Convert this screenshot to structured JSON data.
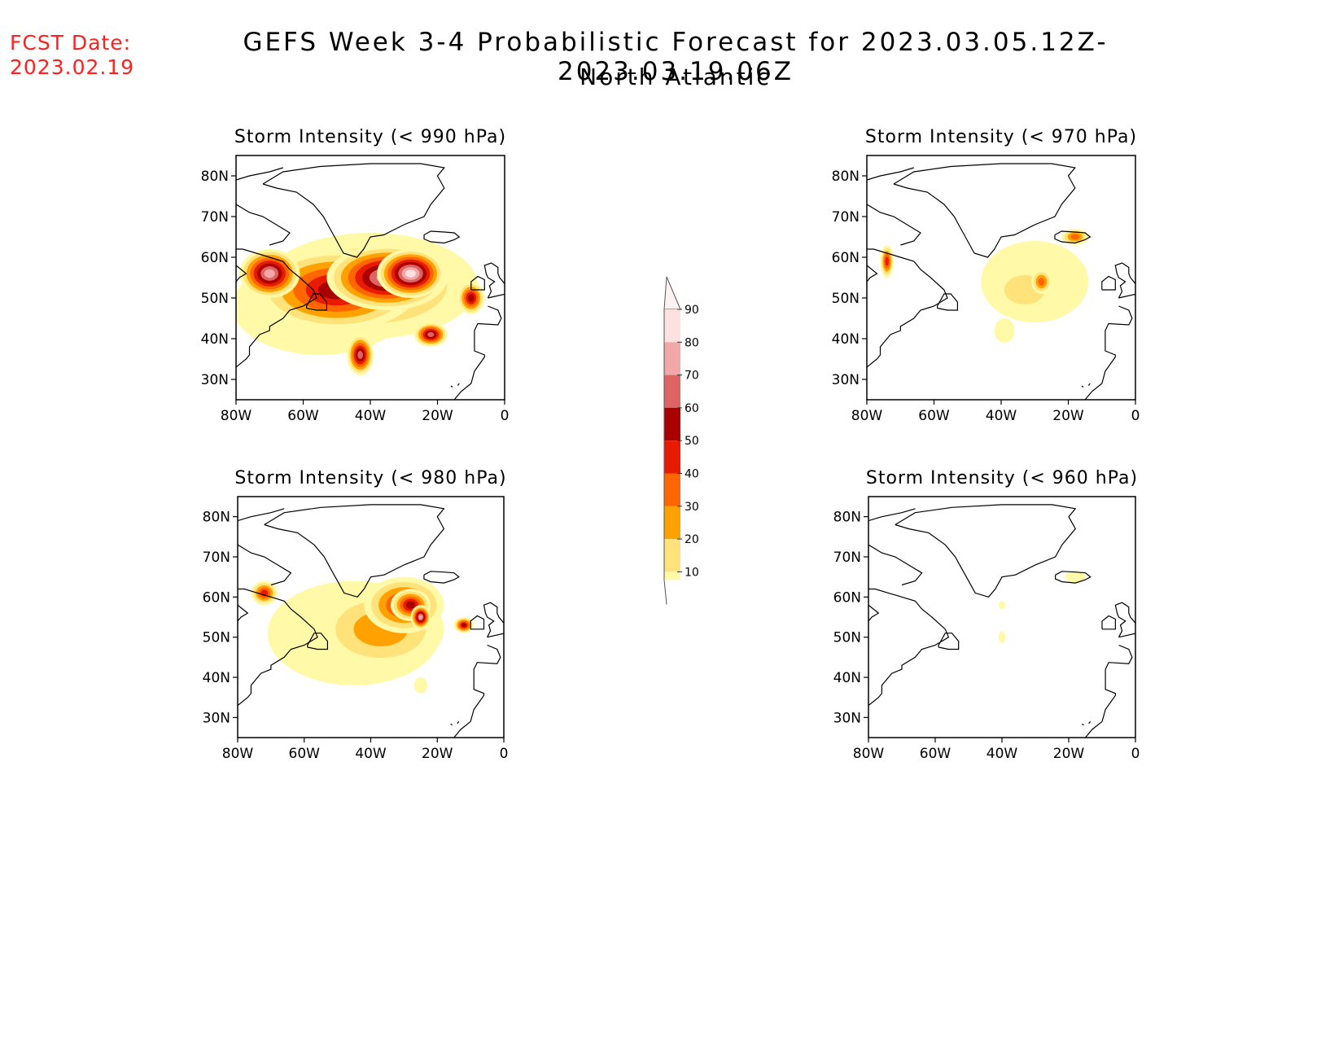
{
  "header": {
    "fcst_label": "FCST Date:",
    "fcst_date": "2023.02.19",
    "title": "GEFS Week 3-4 Probabilistic Forecast for 2023.03.05.12Z-2023.03.19.06Z",
    "subtitle": "North Atlantic"
  },
  "axes": {
    "lat_labels": [
      "80N",
      "70N",
      "60N",
      "50N",
      "40N",
      "30N"
    ],
    "lon_labels": [
      "80W",
      "60W",
      "40W",
      "20W",
      "0"
    ]
  },
  "panels": [
    {
      "title": "Storm Intensity (< 990 hPa)",
      "threshold_hpa": 990,
      "coverage": "extensive",
      "blobs": [
        {
          "lon": -55,
          "lat": 48,
          "rx": 26,
          "ry": 12,
          "level": 0
        },
        {
          "lon": -40,
          "lat": 53,
          "rx": 32,
          "ry": 13,
          "level": 2
        },
        {
          "lon": -50,
          "lat": 52,
          "rx": 24,
          "ry": 10,
          "level": 5
        },
        {
          "lon": -35,
          "lat": 55,
          "rx": 18,
          "ry": 8,
          "level": 7
        },
        {
          "lon": -70,
          "lat": 56,
          "rx": 9,
          "ry": 6,
          "level": 7
        },
        {
          "lon": -28,
          "lat": 56,
          "rx": 10,
          "ry": 6,
          "level": 8
        },
        {
          "lon": -43,
          "lat": 36,
          "rx": 4,
          "ry": 5,
          "level": 6
        },
        {
          "lon": -22,
          "lat": 41,
          "rx": 5,
          "ry": 3,
          "level": 6
        },
        {
          "lon": -10,
          "lat": 50,
          "rx": 4,
          "ry": 4,
          "level": 5
        }
      ]
    },
    {
      "title": "Storm Intensity (< 970 hPa)",
      "threshold_hpa": 970,
      "coverage": "moderate",
      "blobs": [
        {
          "lon": -30,
          "lat": 54,
          "rx": 16,
          "ry": 10,
          "level": 0
        },
        {
          "lon": -33,
          "lat": 52,
          "rx": 10,
          "ry": 6,
          "level": 1
        },
        {
          "lon": -74,
          "lat": 59,
          "rx": 2,
          "ry": 4,
          "level": 4
        },
        {
          "lon": -28,
          "lat": 54,
          "rx": 3,
          "ry": 3,
          "level": 3
        },
        {
          "lon": -18,
          "lat": 65,
          "rx": 4,
          "ry": 2,
          "level": 3
        },
        {
          "lon": -39,
          "lat": 42,
          "rx": 3,
          "ry": 3,
          "level": 0
        }
      ]
    },
    {
      "title": "Storm Intensity (< 980 hPa)",
      "threshold_hpa": 980,
      "coverage": "substantial",
      "blobs": [
        {
          "lon": -45,
          "lat": 51,
          "rx": 26,
          "ry": 13,
          "level": 0
        },
        {
          "lon": -37,
          "lat": 52,
          "rx": 19,
          "ry": 10,
          "level": 2
        },
        {
          "lon": -30,
          "lat": 58,
          "rx": 12,
          "ry": 7,
          "level": 4
        },
        {
          "lon": -28,
          "lat": 58,
          "rx": 6,
          "ry": 4,
          "level": 5
        },
        {
          "lon": -72,
          "lat": 61,
          "rx": 4,
          "ry": 3,
          "level": 4
        },
        {
          "lon": -25,
          "lat": 55,
          "rx": 3,
          "ry": 3,
          "level": 7
        },
        {
          "lon": -12,
          "lat": 53,
          "rx": 3,
          "ry": 2,
          "level": 5
        },
        {
          "lon": -25,
          "lat": 38,
          "rx": 2,
          "ry": 2,
          "level": 0
        }
      ]
    },
    {
      "title": "Storm Intensity (< 960 hPa)",
      "threshold_hpa": 960,
      "coverage": "minimal",
      "blobs": [
        {
          "lon": -18,
          "lat": 65,
          "rx": 3,
          "ry": 1.5,
          "level": 0
        },
        {
          "lon": -40,
          "lat": 50,
          "rx": 1,
          "ry": 1.5,
          "level": 0
        },
        {
          "lon": -40,
          "lat": 58,
          "rx": 1,
          "ry": 1,
          "level": 0
        }
      ]
    }
  ],
  "colorbar": {
    "labels": [
      "10",
      "20",
      "30",
      "40",
      "50",
      "60",
      "70",
      "80",
      "90"
    ],
    "colors": [
      "#fff9a8",
      "#ffe27a",
      "#ffa200",
      "#ff6600",
      "#e81a00",
      "#aa0000",
      "#de6464",
      "#f2a8a8",
      "#fde0e0",
      "#fff2f2"
    ]
  }
}
